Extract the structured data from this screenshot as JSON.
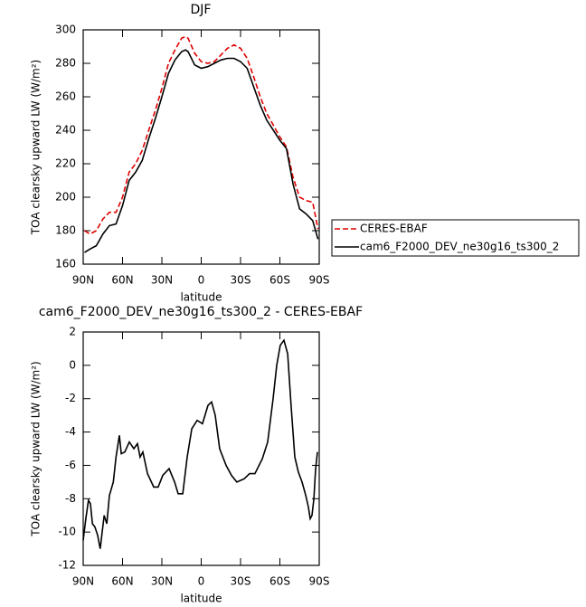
{
  "chart_data": [
    {
      "type": "line",
      "title": "DJF",
      "xlabel": "latitude",
      "ylabel": "TOA clearsky upward LW (W/m²)",
      "x": [
        89,
        85,
        80,
        75,
        70,
        65,
        60,
        55,
        50,
        45,
        40,
        35,
        30,
        25,
        20,
        15,
        12,
        10,
        5,
        0,
        -5,
        -10,
        -15,
        -20,
        -25,
        -30,
        -35,
        -40,
        -45,
        -50,
        -55,
        -60,
        -65,
        -70,
        -75,
        -80,
        -85,
        -89
      ],
      "series": [
        {
          "name": "CERES-EBAF",
          "color": "#e00000",
          "style": "dashed",
          "values": [
            180,
            178,
            180,
            187,
            191,
            191,
            200,
            215,
            220,
            228,
            240,
            252,
            265,
            280,
            288,
            295,
            296,
            295,
            286,
            281,
            280,
            281,
            285,
            289,
            291,
            289,
            283,
            272,
            260,
            250,
            243,
            236,
            230,
            212,
            200,
            198,
            197,
            181
          ]
        },
        {
          "name": "cam6_F2000_DEV_ne30g16_ts300_2",
          "color": "#000000",
          "style": "solid",
          "values": [
            167,
            169,
            171,
            178,
            183,
            184,
            195,
            210,
            215,
            222,
            235,
            247,
            260,
            274,
            282,
            287,
            288,
            287,
            279,
            277,
            278,
            280,
            282,
            283,
            283,
            281,
            277,
            266,
            255,
            246,
            240,
            234,
            229,
            208,
            193,
            190,
            186,
            175
          ]
        }
      ],
      "xlim": [
        90,
        -90
      ],
      "ylim": [
        160,
        300
      ],
      "xticks": [
        {
          "value": 90,
          "label": "90N"
        },
        {
          "value": 60,
          "label": "60N"
        },
        {
          "value": 30,
          "label": "30N"
        },
        0,
        {
          "value": -30,
          "label": "30S"
        },
        {
          "value": -60,
          "label": "60S"
        },
        {
          "value": -90,
          "label": "90S"
        }
      ],
      "yticks": [
        160,
        180,
        200,
        220,
        240,
        260,
        280,
        300
      ],
      "legend": "outside-right"
    },
    {
      "type": "line",
      "title": "cam6_F2000_DEV_ne30g16_ts300_2 - CERES-EBAF",
      "xlabel": "latitude",
      "ylabel": "TOA clearsky upward LW (W/m²)",
      "x": [
        90,
        88,
        86,
        84.5,
        83,
        81,
        79,
        77,
        74,
        72,
        70,
        67,
        65,
        62.4,
        61,
        58.3,
        54.8,
        51.4,
        48.6,
        46.6,
        44.5,
        41,
        36.2,
        32.8,
        29.3,
        24.5,
        20.3,
        17.6,
        14.1,
        10.7,
        7.2,
        3.1,
        -1,
        -5.2,
        -7.9,
        -10.7,
        -14.1,
        -19,
        -23.1,
        -27.2,
        -32.8,
        -36.9,
        -41,
        -46.6,
        -50.7,
        -54.8,
        -57.6,
        -60.3,
        -63.1,
        -65.9,
        -68.6,
        -71.4,
        -74.1,
        -76.9,
        -79.7,
        -81.7,
        -83.1,
        -84.5,
        -85.9,
        -87.2,
        -88.6
      ],
      "series": [
        {
          "name": "cam6_F2000_DEV_ne30g16_ts300_2 - CERES-EBAF",
          "color": "#000000",
          "style": "solid",
          "values": [
            -10.5,
            -9.2,
            -8.1,
            -8.3,
            -9.5,
            -9.7,
            -10.2,
            -11,
            -9,
            -9.5,
            -7.8,
            -7,
            -5.5,
            -4.2,
            -5.3,
            -5.2,
            -4.6,
            -5,
            -4.7,
            -5.5,
            -5.2,
            -6.5,
            -7.3,
            -7.3,
            -6.6,
            -6.2,
            -7,
            -7.7,
            -7.7,
            -5.5,
            -3.8,
            -3.3,
            -3.5,
            -2.4,
            -2.2,
            -3,
            -5,
            -6,
            -6.6,
            -7,
            -6.8,
            -6.5,
            -6.5,
            -5.6,
            -4.6,
            -2,
            0,
            1.2,
            1.5,
            0.7,
            -2.5,
            -5.5,
            -6.4,
            -7,
            -7.8,
            -8.5,
            -9.2,
            -9,
            -8,
            -6.3,
            -5.2
          ]
        }
      ],
      "xlim": [
        90,
        -90
      ],
      "ylim": [
        -12,
        2
      ],
      "xticks": [
        {
          "value": 90,
          "label": "90N"
        },
        {
          "value": 60,
          "label": "60N"
        },
        {
          "value": 30,
          "label": "30N"
        },
        0,
        {
          "value": -30,
          "label": "30S"
        },
        {
          "value": -60,
          "label": "60S"
        },
        {
          "value": -90,
          "label": "90S"
        }
      ],
      "yticks": [
        -12,
        -10,
        -8,
        -6,
        -4,
        -2,
        0,
        2
      ]
    }
  ]
}
